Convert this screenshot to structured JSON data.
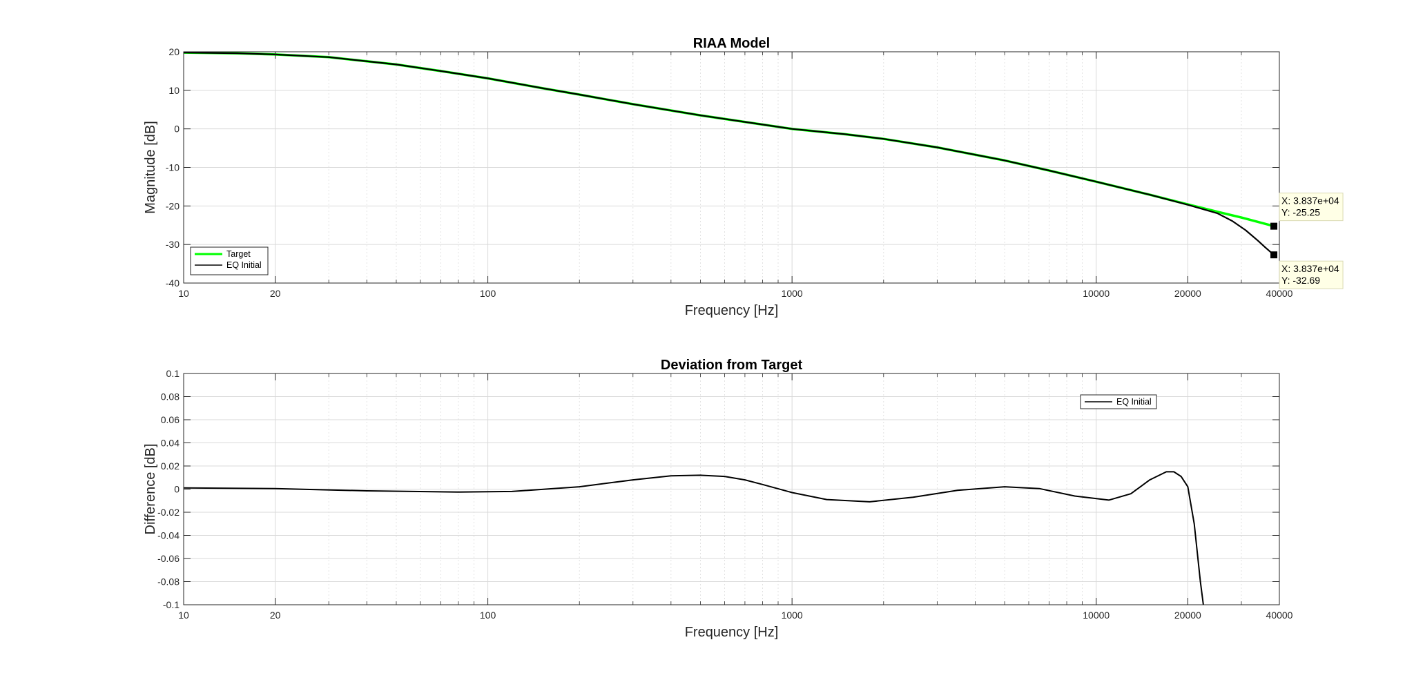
{
  "chart_data": [
    {
      "type": "line",
      "title": "RIAA Model",
      "xlabel": "Frequency [Hz]",
      "ylabel": "Magnitude [dB]",
      "xscale": "log",
      "xlim": [
        10,
        40000
      ],
      "ylim": [
        -40,
        20
      ],
      "xticks": [
        10,
        20,
        100,
        1000,
        10000,
        20000,
        40000
      ],
      "xtick_labels": [
        "10",
        "20",
        "100",
        "1000",
        "10000",
        "20000",
        "40000"
      ],
      "yticks": [
        -40,
        -30,
        -20,
        -10,
        0,
        10,
        20
      ],
      "ytick_labels": [
        "-40",
        "-30",
        "-20",
        "-10",
        "0",
        "10",
        "20"
      ],
      "grid": true,
      "legend_position": "bottom-left",
      "series": [
        {
          "name": "Target",
          "color": "#00ff00",
          "x": [
            10,
            15,
            20,
            30,
            50,
            70,
            100,
            150,
            200,
            300,
            500,
            700,
            1000,
            1500,
            2000,
            3000,
            5000,
            7000,
            10000,
            15000,
            20000,
            25000,
            30000,
            38370
          ],
          "y": [
            19.8,
            19.6,
            19.3,
            18.6,
            16.7,
            15.0,
            13.1,
            10.6,
            8.9,
            6.4,
            3.5,
            1.8,
            0.0,
            -1.4,
            -2.6,
            -4.8,
            -8.2,
            -10.8,
            -13.7,
            -17.1,
            -19.6,
            -21.5,
            -23.0,
            -25.25
          ]
        },
        {
          "name": "EQ Initial",
          "color": "#000000",
          "x": [
            10,
            15,
            20,
            30,
            50,
            70,
            100,
            150,
            200,
            300,
            500,
            700,
            1000,
            1500,
            2000,
            3000,
            5000,
            7000,
            10000,
            15000,
            20000,
            25000,
            28000,
            31000,
            34000,
            36000,
            38370
          ],
          "y": [
            19.8,
            19.6,
            19.3,
            18.6,
            16.7,
            15.0,
            13.1,
            10.6,
            8.9,
            6.4,
            3.5,
            1.8,
            0.0,
            -1.4,
            -2.6,
            -4.8,
            -8.2,
            -10.8,
            -13.7,
            -17.1,
            -19.7,
            -21.9,
            -23.9,
            -26.3,
            -29.0,
            -30.8,
            -32.69
          ]
        }
      ],
      "data_tips": [
        {
          "series": "Target",
          "x": 38370,
          "y": -25.25,
          "x_text": "X: 3.837e+04",
          "y_text": "Y: -25.25",
          "placement": "above"
        },
        {
          "series": "EQ Initial",
          "x": 38370,
          "y": -32.69,
          "x_text": "X: 3.837e+04",
          "y_text": "Y: -32.69",
          "placement": "below"
        }
      ]
    },
    {
      "type": "line",
      "title": "Deviation from Target",
      "xlabel": "Frequency [Hz]",
      "ylabel": "Difference [dB]",
      "xscale": "log",
      "xlim": [
        10,
        40000
      ],
      "ylim": [
        -0.1,
        0.1
      ],
      "xticks": [
        10,
        20,
        100,
        1000,
        10000,
        20000,
        40000
      ],
      "xtick_labels": [
        "10",
        "20",
        "100",
        "1000",
        "10000",
        "20000",
        "40000"
      ],
      "yticks": [
        -0.1,
        -0.08,
        -0.06,
        -0.04,
        -0.02,
        0,
        0.02,
        0.04,
        0.06,
        0.08,
        0.1
      ],
      "ytick_labels": [
        "-0.1",
        "-0.08",
        "-0.06",
        "-0.04",
        "-0.02",
        "0",
        "0.02",
        "0.04",
        "0.06",
        "0.08",
        "0.1"
      ],
      "grid": true,
      "legend_position": "top-right",
      "series": [
        {
          "name": "EQ Initial",
          "color": "#000000",
          "x": [
            10,
            20,
            40,
            80,
            120,
            200,
            300,
            400,
            500,
            600,
            700,
            800,
            1000,
            1300,
            1800,
            2500,
            3500,
            5000,
            6500,
            8500,
            11000,
            13000,
            15000,
            17000,
            18000,
            19000,
            20000,
            21000,
            22000,
            22500
          ],
          "y": [
            0.001,
            0.0005,
            -0.0015,
            -0.0025,
            -0.002,
            0.002,
            0.008,
            0.0115,
            0.012,
            0.011,
            0.008,
            0.004,
            -0.003,
            -0.009,
            -0.011,
            -0.007,
            -0.001,
            0.002,
            0.0005,
            -0.006,
            -0.0095,
            -0.004,
            0.008,
            0.015,
            0.015,
            0.011,
            0.002,
            -0.03,
            -0.08,
            -0.1
          ]
        }
      ]
    }
  ]
}
